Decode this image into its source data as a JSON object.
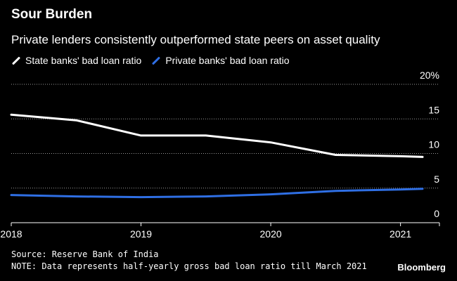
{
  "header": {
    "title": "Sour Burden",
    "subtitle": "Private lenders consistently outperformed state peers on asset quality"
  },
  "footer": {
    "source": "Source: Reserve Bank of India",
    "note": "NOTE: Data represents half-yearly gross bad loan ratio till March 2021",
    "brand": "Bloomberg"
  },
  "chart_data": {
    "type": "line",
    "title": "Sour Burden",
    "subtitle": "Private lenders consistently outperformed state peers on asset quality",
    "xlabel": "",
    "ylabel": "",
    "x": [
      2018.0,
      2018.5,
      2019.0,
      2019.5,
      2020.0,
      2020.5,
      2021.0,
      2021.17
    ],
    "xlim": [
      2018.0,
      2021.3
    ],
    "ylim": [
      0,
      20
    ],
    "x_ticks": [
      2018,
      2019,
      2020,
      2021
    ],
    "x_tick_labels": [
      "2018",
      "2019",
      "2020",
      "2021"
    ],
    "y_ticks": [
      0,
      5,
      10,
      15,
      20
    ],
    "y_tick_labels": [
      "0",
      "5",
      "10",
      "15",
      "20%"
    ],
    "grid": true,
    "legend_position": "top-left",
    "series": [
      {
        "name": "State banks' bad loan ratio",
        "color": "#ffffff",
        "values": [
          15.6,
          14.8,
          12.6,
          12.6,
          11.6,
          9.8,
          9.6,
          9.5
        ]
      },
      {
        "name": "Private banks' bad loan ratio",
        "color": "#2f6fe4",
        "values": [
          4.0,
          3.8,
          3.7,
          3.8,
          4.1,
          4.6,
          4.8,
          4.9
        ]
      }
    ]
  }
}
